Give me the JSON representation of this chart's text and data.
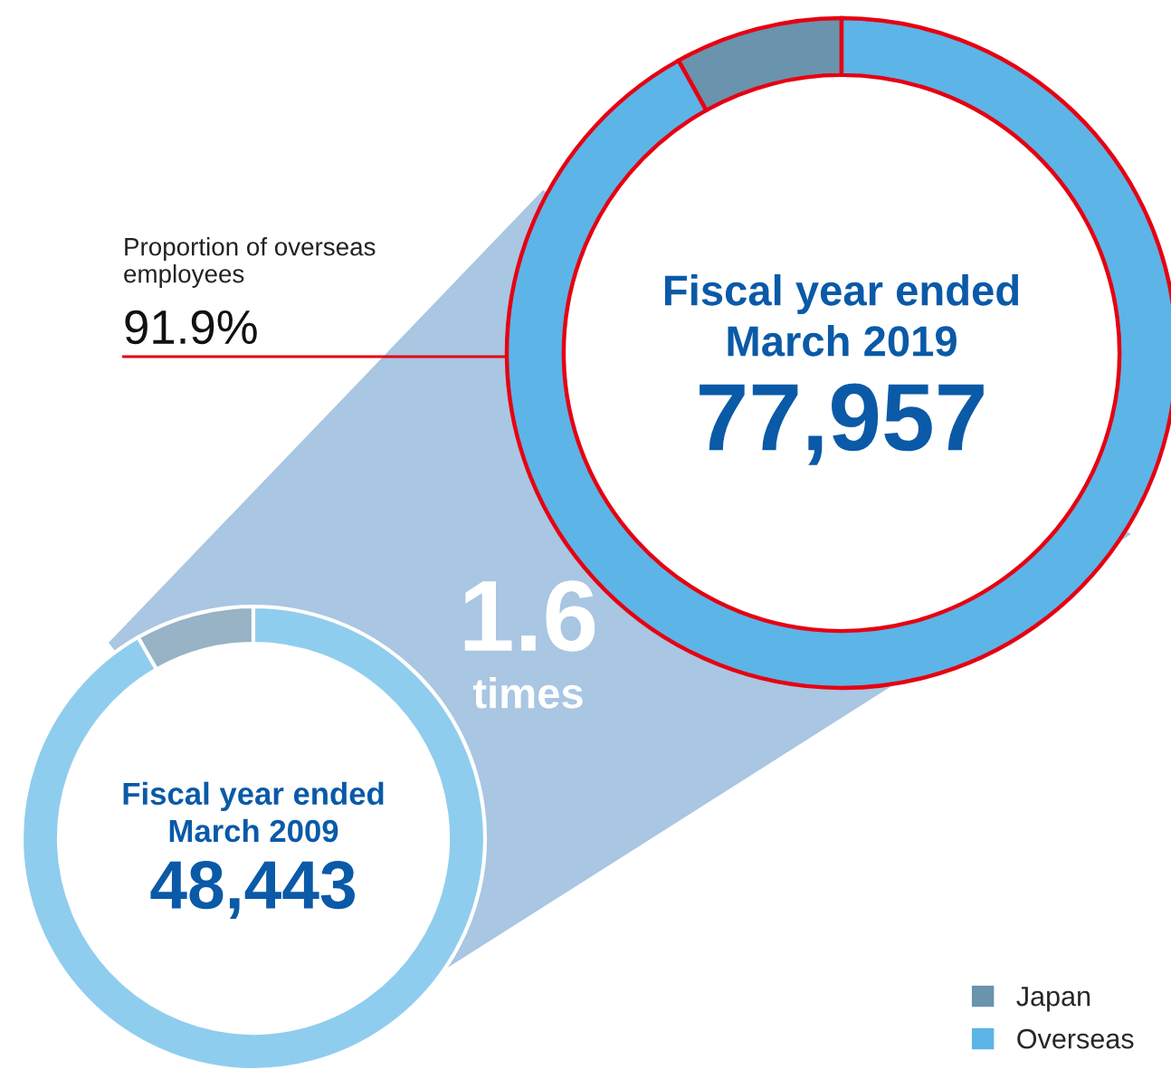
{
  "chart_data": [
    {
      "type": "donut",
      "title": "Fiscal year ended\nMarch 2019",
      "categories": [
        "Japan",
        "Overseas"
      ],
      "values": [
        8.1,
        91.9
      ],
      "colors": [
        "#6a93ad",
        "#5db4e6"
      ],
      "legend": "bottom right",
      "annotations": [
        "77,957",
        "Proportion of overseas\nemployees",
        "91.9%",
        "1.6",
        "times"
      ]
    },
    {
      "type": "donut",
      "title": "Fiscal year ended\nMarch 2009",
      "categories": [
        null,
        null
      ],
      "values": [
        8.3,
        91.7
      ],
      "colors": [
        "#97b3c5",
        "#8fcdee"
      ],
      "annotations": [
        "48,443"
      ]
    }
  ]
}
